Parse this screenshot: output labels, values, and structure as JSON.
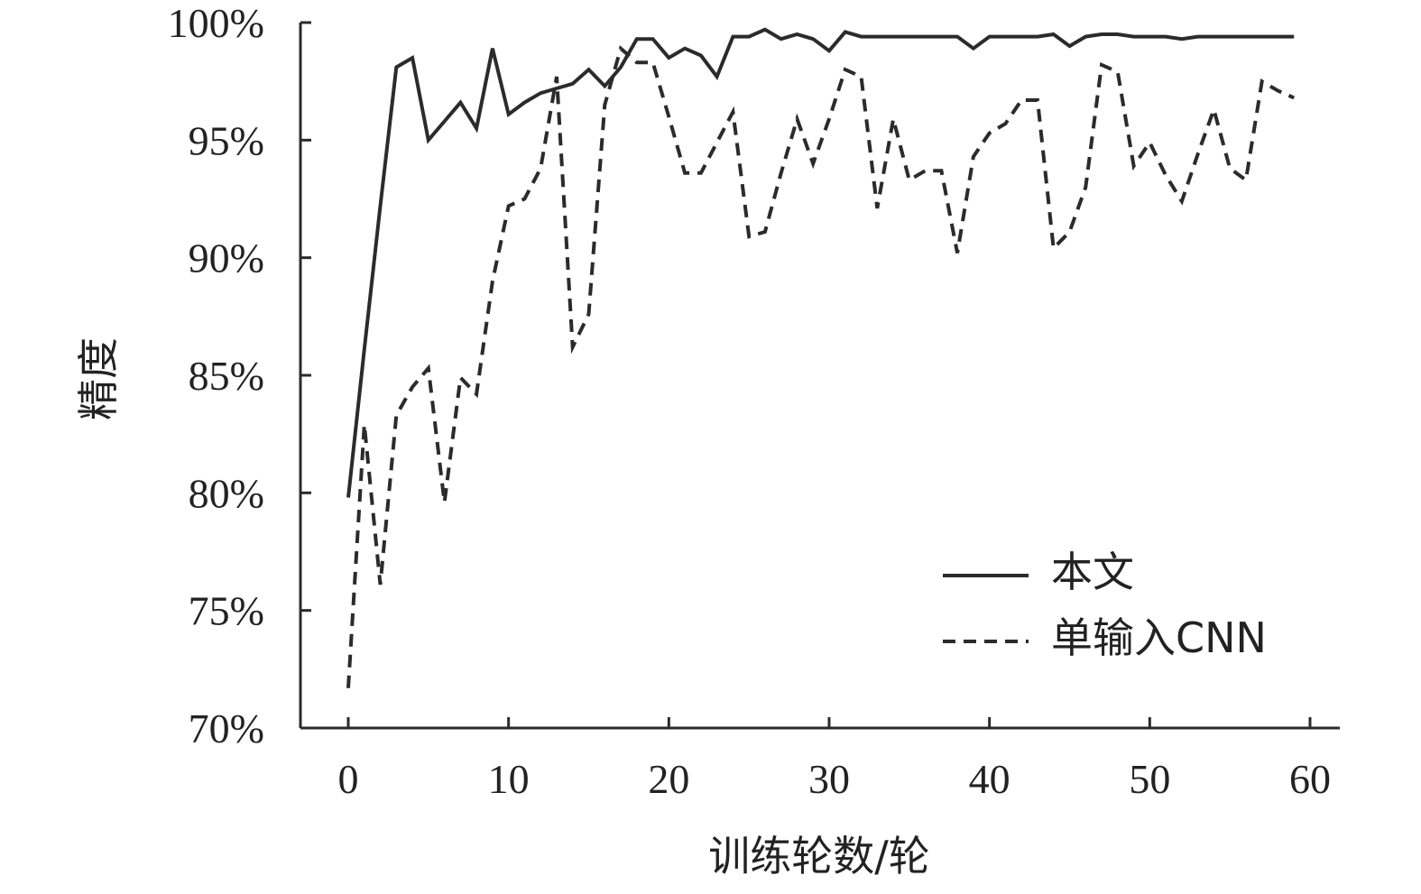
{
  "chart_data": {
    "type": "line",
    "xlabel": "训练轮数/轮",
    "ylabel": "精度",
    "xlim": [
      0,
      60
    ],
    "ylim": [
      70,
      100
    ],
    "xticks": [
      "0",
      "10",
      "20",
      "30",
      "40",
      "50",
      "60"
    ],
    "yticks": [
      "70%",
      "75%",
      "80%",
      "85%",
      "90%",
      "95%",
      "100%"
    ],
    "grid": false,
    "legend_position": "bottom-right",
    "series": [
      {
        "name": "本文",
        "style": "solid",
        "color": "#2b2b2b",
        "x": [
          0,
          1,
          2,
          3,
          4,
          5,
          6,
          7,
          8,
          9,
          10,
          11,
          12,
          13,
          14,
          15,
          16,
          17,
          18,
          19,
          20,
          21,
          22,
          23,
          24,
          25,
          26,
          27,
          28,
          29,
          30,
          31,
          32,
          33,
          34,
          35,
          36,
          37,
          38,
          39,
          40,
          41,
          42,
          43,
          44,
          45,
          46,
          47,
          48,
          49,
          50,
          51,
          52,
          53,
          54,
          55,
          56,
          57,
          58,
          59
        ],
        "y": [
          79.8,
          86.1,
          92.2,
          98.1,
          98.5,
          95.0,
          95.8,
          96.6,
          95.5,
          98.9,
          96.1,
          96.6,
          97.0,
          97.2,
          97.4,
          98.0,
          97.3,
          98.1,
          99.3,
          99.3,
          98.5,
          98.9,
          98.6,
          97.7,
          99.4,
          99.4,
          99.7,
          99.3,
          99.5,
          99.3,
          98.8,
          99.6,
          99.4,
          99.4,
          99.4,
          99.4,
          99.4,
          99.4,
          99.4,
          98.9,
          99.4,
          99.4,
          99.4,
          99.4,
          99.5,
          99.0,
          99.4,
          99.5,
          99.5,
          99.4,
          99.4,
          99.4,
          99.3,
          99.4,
          99.4,
          99.4,
          99.4,
          99.4,
          99.4,
          99.4
        ]
      },
      {
        "name": "单输入CNN",
        "style": "dashed",
        "color": "#2b2b2b",
        "x": [
          0,
          1,
          2,
          3,
          4,
          5,
          6,
          7,
          8,
          9,
          10,
          11,
          12,
          13,
          14,
          15,
          16,
          17,
          18,
          19,
          20,
          21,
          22,
          23,
          24,
          25,
          26,
          27,
          28,
          29,
          30,
          31,
          32,
          33,
          34,
          35,
          36,
          37,
          38,
          39,
          40,
          41,
          42,
          43,
          44,
          45,
          46,
          47,
          48,
          49,
          50,
          51,
          52,
          53,
          54,
          55,
          56,
          57,
          58,
          59
        ],
        "y": [
          71.7,
          82.9,
          76.1,
          83.3,
          84.5,
          85.3,
          79.6,
          84.9,
          84.2,
          89.0,
          92.2,
          92.5,
          93.8,
          97.7,
          86.2,
          87.6,
          96.5,
          98.9,
          98.3,
          98.3,
          96.0,
          93.6,
          93.6,
          94.9,
          96.2,
          90.9,
          91.1,
          93.6,
          95.9,
          94.0,
          95.9,
          98.0,
          97.7,
          92.1,
          95.9,
          93.3,
          93.7,
          93.7,
          90.2,
          94.3,
          95.3,
          95.7,
          96.7,
          96.7,
          90.4,
          91.1,
          93.0,
          98.2,
          97.9,
          93.9,
          94.9,
          93.5,
          92.4,
          94.4,
          96.3,
          93.8,
          93.3,
          97.5,
          97.1,
          96.8
        ]
      }
    ]
  }
}
